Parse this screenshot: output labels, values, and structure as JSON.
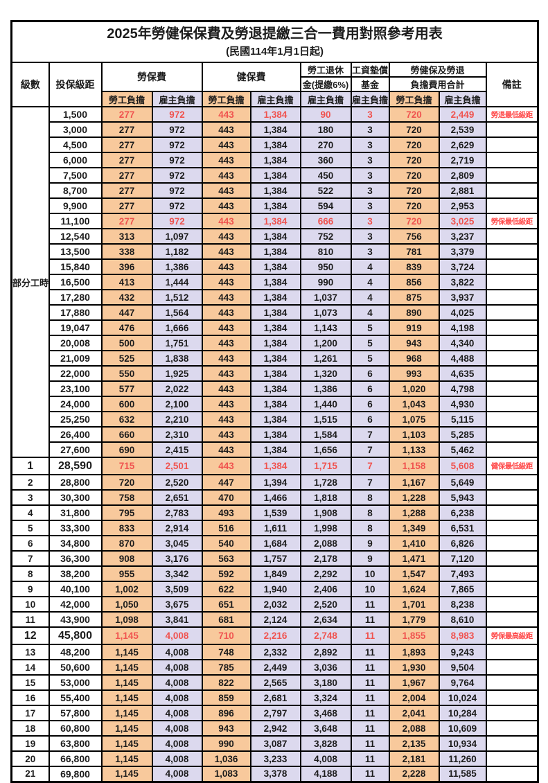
{
  "title": "2025年勞健保保費及勞退提繳三合一費用對照參考用表",
  "subtitle": "(民國114年1月1日起)",
  "header": {
    "level": "級數",
    "bracket": "投保級距",
    "labor_insurance": "勞保費",
    "health_insurance": "健保費",
    "pension_line1": "勞工退休",
    "pension_line2": "金(提繳6%)",
    "wage_fund_line1": "工資墊償",
    "wage_fund_line2": "基金",
    "total_line1": "勞健保及勞退",
    "total_line2": "負擔費用合計",
    "remark": "備註",
    "employee_share": "勞工負擔",
    "employer_share": "雇主負擔"
  },
  "group": {
    "label": "部分工時",
    "rows": 23
  },
  "colors": {
    "employee_bg": "#F8C99C",
    "employer_bg": "#DCD9EE",
    "highlight_value": "#F0534F",
    "remark_red": "#FF4B4B",
    "border": "#000000"
  },
  "rows": [
    {
      "level": "",
      "bracket": "1,500",
      "values": [
        "277",
        "972",
        "443",
        "1,384",
        "90",
        "3",
        "720",
        "2,449"
      ],
      "remark": "勞退最低級距",
      "red": true,
      "bold": false
    },
    {
      "level": "",
      "bracket": "3,000",
      "values": [
        "277",
        "972",
        "443",
        "1,384",
        "180",
        "3",
        "720",
        "2,539"
      ],
      "remark": "",
      "red": false,
      "bold": false
    },
    {
      "level": "",
      "bracket": "4,500",
      "values": [
        "277",
        "972",
        "443",
        "1,384",
        "270",
        "3",
        "720",
        "2,629"
      ],
      "remark": "",
      "red": false,
      "bold": false
    },
    {
      "level": "",
      "bracket": "6,000",
      "values": [
        "277",
        "972",
        "443",
        "1,384",
        "360",
        "3",
        "720",
        "2,719"
      ],
      "remark": "",
      "red": false,
      "bold": false
    },
    {
      "level": "",
      "bracket": "7,500",
      "values": [
        "277",
        "972",
        "443",
        "1,384",
        "450",
        "3",
        "720",
        "2,809"
      ],
      "remark": "",
      "red": false,
      "bold": false
    },
    {
      "level": "",
      "bracket": "8,700",
      "values": [
        "277",
        "972",
        "443",
        "1,384",
        "522",
        "3",
        "720",
        "2,881"
      ],
      "remark": "",
      "red": false,
      "bold": false
    },
    {
      "level": "",
      "bracket": "9,900",
      "values": [
        "277",
        "972",
        "443",
        "1,384",
        "594",
        "3",
        "720",
        "2,953"
      ],
      "remark": "",
      "red": false,
      "bold": false
    },
    {
      "level": "",
      "bracket": "11,100",
      "values": [
        "277",
        "972",
        "443",
        "1,384",
        "666",
        "3",
        "720",
        "3,025"
      ],
      "remark": "勞保最低級距",
      "red": true,
      "bold": false
    },
    {
      "level": "",
      "bracket": "12,540",
      "values": [
        "313",
        "1,097",
        "443",
        "1,384",
        "752",
        "3",
        "756",
        "3,237"
      ],
      "remark": "",
      "red": false,
      "bold": false
    },
    {
      "level": "",
      "bracket": "13,500",
      "values": [
        "338",
        "1,182",
        "443",
        "1,384",
        "810",
        "3",
        "781",
        "3,379"
      ],
      "remark": "",
      "red": false,
      "bold": false
    },
    {
      "level": "",
      "bracket": "15,840",
      "values": [
        "396",
        "1,386",
        "443",
        "1,384",
        "950",
        "4",
        "839",
        "3,724"
      ],
      "remark": "",
      "red": false,
      "bold": false
    },
    {
      "level": "",
      "bracket": "16,500",
      "values": [
        "413",
        "1,444",
        "443",
        "1,384",
        "990",
        "4",
        "856",
        "3,822"
      ],
      "remark": "",
      "red": false,
      "bold": false
    },
    {
      "level": "",
      "bracket": "17,280",
      "values": [
        "432",
        "1,512",
        "443",
        "1,384",
        "1,037",
        "4",
        "875",
        "3,937"
      ],
      "remark": "",
      "red": false,
      "bold": false
    },
    {
      "level": "",
      "bracket": "17,880",
      "values": [
        "447",
        "1,564",
        "443",
        "1,384",
        "1,073",
        "4",
        "890",
        "4,025"
      ],
      "remark": "",
      "red": false,
      "bold": false
    },
    {
      "level": "",
      "bracket": "19,047",
      "values": [
        "476",
        "1,666",
        "443",
        "1,384",
        "1,143",
        "5",
        "919",
        "4,198"
      ],
      "remark": "",
      "red": false,
      "bold": false
    },
    {
      "level": "",
      "bracket": "20,008",
      "values": [
        "500",
        "1,751",
        "443",
        "1,384",
        "1,200",
        "5",
        "943",
        "4,340"
      ],
      "remark": "",
      "red": false,
      "bold": false
    },
    {
      "level": "",
      "bracket": "21,009",
      "values": [
        "525",
        "1,838",
        "443",
        "1,384",
        "1,261",
        "5",
        "968",
        "4,488"
      ],
      "remark": "",
      "red": false,
      "bold": false
    },
    {
      "level": "",
      "bracket": "22,000",
      "values": [
        "550",
        "1,925",
        "443",
        "1,384",
        "1,320",
        "6",
        "993",
        "4,635"
      ],
      "remark": "",
      "red": false,
      "bold": false
    },
    {
      "level": "",
      "bracket": "23,100",
      "values": [
        "577",
        "2,022",
        "443",
        "1,384",
        "1,386",
        "6",
        "1,020",
        "4,798"
      ],
      "remark": "",
      "red": false,
      "bold": false
    },
    {
      "level": "",
      "bracket": "24,000",
      "values": [
        "600",
        "2,100",
        "443",
        "1,384",
        "1,440",
        "6",
        "1,043",
        "4,930"
      ],
      "remark": "",
      "red": false,
      "bold": false
    },
    {
      "level": "",
      "bracket": "25,250",
      "values": [
        "632",
        "2,210",
        "443",
        "1,384",
        "1,515",
        "6",
        "1,075",
        "5,115"
      ],
      "remark": "",
      "red": false,
      "bold": false
    },
    {
      "level": "",
      "bracket": "26,400",
      "values": [
        "660",
        "2,310",
        "443",
        "1,384",
        "1,584",
        "7",
        "1,103",
        "5,285"
      ],
      "remark": "",
      "red": false,
      "bold": false
    },
    {
      "level": "",
      "bracket": "27,600",
      "values": [
        "690",
        "2,415",
        "443",
        "1,384",
        "1,656",
        "7",
        "1,133",
        "5,462"
      ],
      "remark": "",
      "red": false,
      "bold": false
    },
    {
      "level": "1",
      "bracket": "28,590",
      "values": [
        "715",
        "2,501",
        "443",
        "1,384",
        "1,715",
        "7",
        "1,158",
        "5,608"
      ],
      "remark": "健保最低級距",
      "red": true,
      "bold": true
    },
    {
      "level": "2",
      "bracket": "28,800",
      "values": [
        "720",
        "2,520",
        "447",
        "1,394",
        "1,728",
        "7",
        "1,167",
        "5,649"
      ],
      "remark": "",
      "red": false,
      "bold": false
    },
    {
      "level": "3",
      "bracket": "30,300",
      "values": [
        "758",
        "2,651",
        "470",
        "1,466",
        "1,818",
        "8",
        "1,228",
        "5,943"
      ],
      "remark": "",
      "red": false,
      "bold": false
    },
    {
      "level": "4",
      "bracket": "31,800",
      "values": [
        "795",
        "2,783",
        "493",
        "1,539",
        "1,908",
        "8",
        "1,288",
        "6,238"
      ],
      "remark": "",
      "red": false,
      "bold": false
    },
    {
      "level": "5",
      "bracket": "33,300",
      "values": [
        "833",
        "2,914",
        "516",
        "1,611",
        "1,998",
        "8",
        "1,349",
        "6,531"
      ],
      "remark": "",
      "red": false,
      "bold": false
    },
    {
      "level": "6",
      "bracket": "34,800",
      "values": [
        "870",
        "3,045",
        "540",
        "1,684",
        "2,088",
        "9",
        "1,410",
        "6,826"
      ],
      "remark": "",
      "red": false,
      "bold": false
    },
    {
      "level": "7",
      "bracket": "36,300",
      "values": [
        "908",
        "3,176",
        "563",
        "1,757",
        "2,178",
        "9",
        "1,471",
        "7,120"
      ],
      "remark": "",
      "red": false,
      "bold": false
    },
    {
      "level": "8",
      "bracket": "38,200",
      "values": [
        "955",
        "3,342",
        "592",
        "1,849",
        "2,292",
        "10",
        "1,547",
        "7,493"
      ],
      "remark": "",
      "red": false,
      "bold": false
    },
    {
      "level": "9",
      "bracket": "40,100",
      "values": [
        "1,002",
        "3,509",
        "622",
        "1,940",
        "2,406",
        "10",
        "1,624",
        "7,865"
      ],
      "remark": "",
      "red": false,
      "bold": false
    },
    {
      "level": "10",
      "bracket": "42,000",
      "values": [
        "1,050",
        "3,675",
        "651",
        "2,032",
        "2,520",
        "11",
        "1,701",
        "8,238"
      ],
      "remark": "",
      "red": false,
      "bold": false
    },
    {
      "level": "11",
      "bracket": "43,900",
      "values": [
        "1,098",
        "3,841",
        "681",
        "2,124",
        "2,634",
        "11",
        "1,779",
        "8,610"
      ],
      "remark": "",
      "red": false,
      "bold": false
    },
    {
      "level": "12",
      "bracket": "45,800",
      "values": [
        "1,145",
        "4,008",
        "710",
        "2,216",
        "2,748",
        "11",
        "1,855",
        "8,983"
      ],
      "remark": "勞保最高級距",
      "red": true,
      "bold": true
    },
    {
      "level": "13",
      "bracket": "48,200",
      "values": [
        "1,145",
        "4,008",
        "748",
        "2,332",
        "2,892",
        "11",
        "1,893",
        "9,243"
      ],
      "remark": "",
      "red": false,
      "bold": false
    },
    {
      "level": "14",
      "bracket": "50,600",
      "values": [
        "1,145",
        "4,008",
        "785",
        "2,449",
        "3,036",
        "11",
        "1,930",
        "9,504"
      ],
      "remark": "",
      "red": false,
      "bold": false
    },
    {
      "level": "15",
      "bracket": "53,000",
      "values": [
        "1,145",
        "4,008",
        "822",
        "2,565",
        "3,180",
        "11",
        "1,967",
        "9,764"
      ],
      "remark": "",
      "red": false,
      "bold": false
    },
    {
      "level": "16",
      "bracket": "55,400",
      "values": [
        "1,145",
        "4,008",
        "859",
        "2,681",
        "3,324",
        "11",
        "2,004",
        "10,024"
      ],
      "remark": "",
      "red": false,
      "bold": false
    },
    {
      "level": "17",
      "bracket": "57,800",
      "values": [
        "1,145",
        "4,008",
        "896",
        "2,797",
        "3,468",
        "11",
        "2,041",
        "10,284"
      ],
      "remark": "",
      "red": false,
      "bold": false
    },
    {
      "level": "18",
      "bracket": "60,800",
      "values": [
        "1,145",
        "4,008",
        "943",
        "2,942",
        "3,648",
        "11",
        "2,088",
        "10,609"
      ],
      "remark": "",
      "red": false,
      "bold": false
    },
    {
      "level": "19",
      "bracket": "63,800",
      "values": [
        "1,145",
        "4,008",
        "990",
        "3,087",
        "3,828",
        "11",
        "2,135",
        "10,934"
      ],
      "remark": "",
      "red": false,
      "bold": false
    },
    {
      "level": "20",
      "bracket": "66,800",
      "values": [
        "1,145",
        "4,008",
        "1,036",
        "3,233",
        "4,008",
        "11",
        "2,181",
        "11,260"
      ],
      "remark": "",
      "red": false,
      "bold": false
    },
    {
      "level": "21",
      "bracket": "69,800",
      "values": [
        "1,145",
        "4,008",
        "1,083",
        "3,378",
        "4,188",
        "11",
        "2,228",
        "11,585"
      ],
      "remark": "",
      "red": false,
      "bold": false
    }
  ]
}
